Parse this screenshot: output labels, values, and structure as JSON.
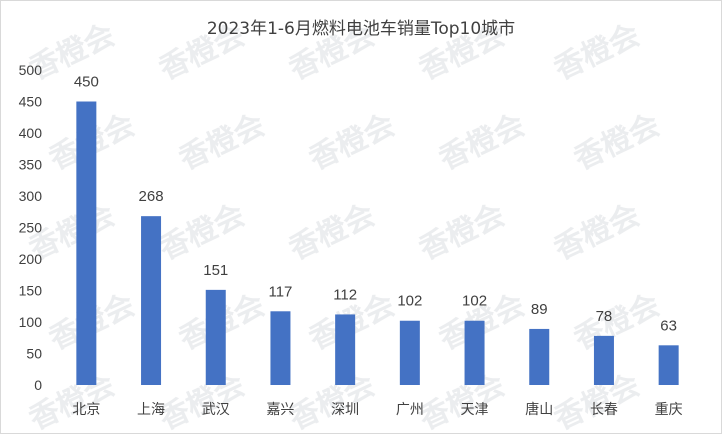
{
  "chart_data": {
    "type": "bar",
    "title": "2023年1-6月燃料电池车销量Top10城市",
    "xlabel": "",
    "ylabel": "",
    "categories": [
      "北京",
      "上海",
      "武汉",
      "嘉兴",
      "深圳",
      "广州",
      "天津",
      "唐山",
      "长春",
      "重庆"
    ],
    "values": [
      450,
      268,
      151,
      117,
      112,
      102,
      102,
      89,
      78,
      63
    ],
    "ylim": [
      0,
      500
    ],
    "yticks": [
      "0",
      "50",
      "100",
      "150",
      "200",
      "250",
      "300",
      "350",
      "400",
      "450",
      "500"
    ],
    "grid": false,
    "legend": "none",
    "bar_color": "#4472c4"
  },
  "watermark": {
    "text": "香橙会"
  }
}
